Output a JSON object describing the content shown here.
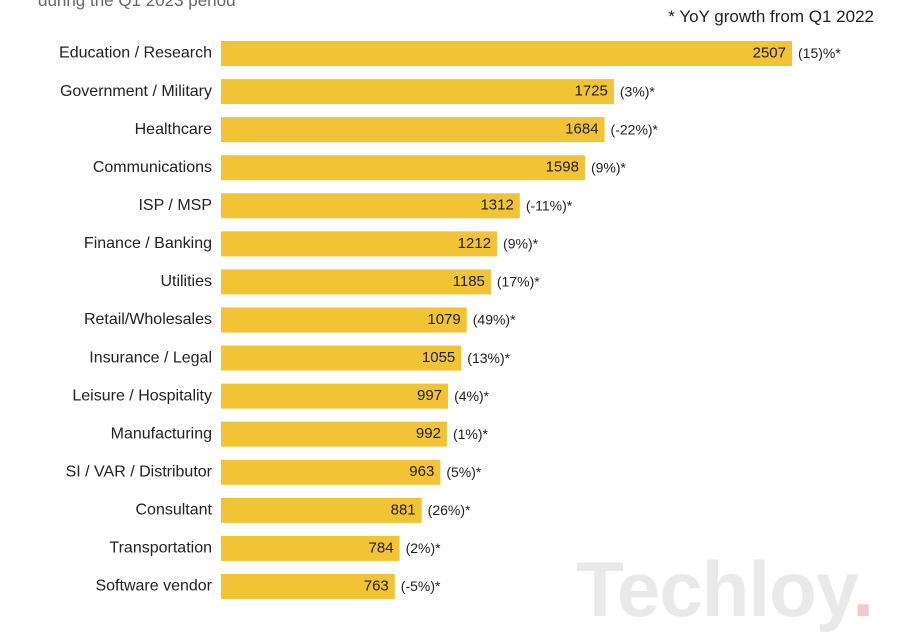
{
  "header": {
    "subtitle": "during the Q1 2023 period",
    "note": "* YoY growth from Q1 2022"
  },
  "watermark": {
    "text": "Techloy",
    "dot": "."
  },
  "colors": {
    "bar": "#F2C335",
    "text": "#222222"
  },
  "chart_data": {
    "type": "bar",
    "orientation": "horizontal",
    "categories": [
      "Education / Research",
      "Government / Military",
      "Healthcare",
      "Communications",
      "ISP / MSP",
      "Finance / Banking",
      "Utilities",
      "Retail/Wholesales",
      "Insurance / Legal",
      "Leisure / Hospitality",
      "Manufacturing",
      "SI / VAR / Distributor",
      "Consultant",
      "Transportation",
      "Software vendor"
    ],
    "values": [
      2507,
      1725,
      1684,
      1598,
      1312,
      1212,
      1185,
      1079,
      1055,
      997,
      992,
      963,
      881,
      784,
      763
    ],
    "growth_labels": [
      "(15)%*",
      "(3%)*",
      "(-22%)*",
      "(9%)*",
      "(-11%)*",
      "(9%)*",
      "(17%)*",
      "(49%)*",
      "(13%)*",
      "(4%)*",
      "(1%)*",
      "(5%)*",
      "(26%)*",
      "(2%)*",
      "(-5%)*"
    ],
    "xlim": [
      0,
      2507
    ],
    "legend": "none",
    "grid": false
  }
}
